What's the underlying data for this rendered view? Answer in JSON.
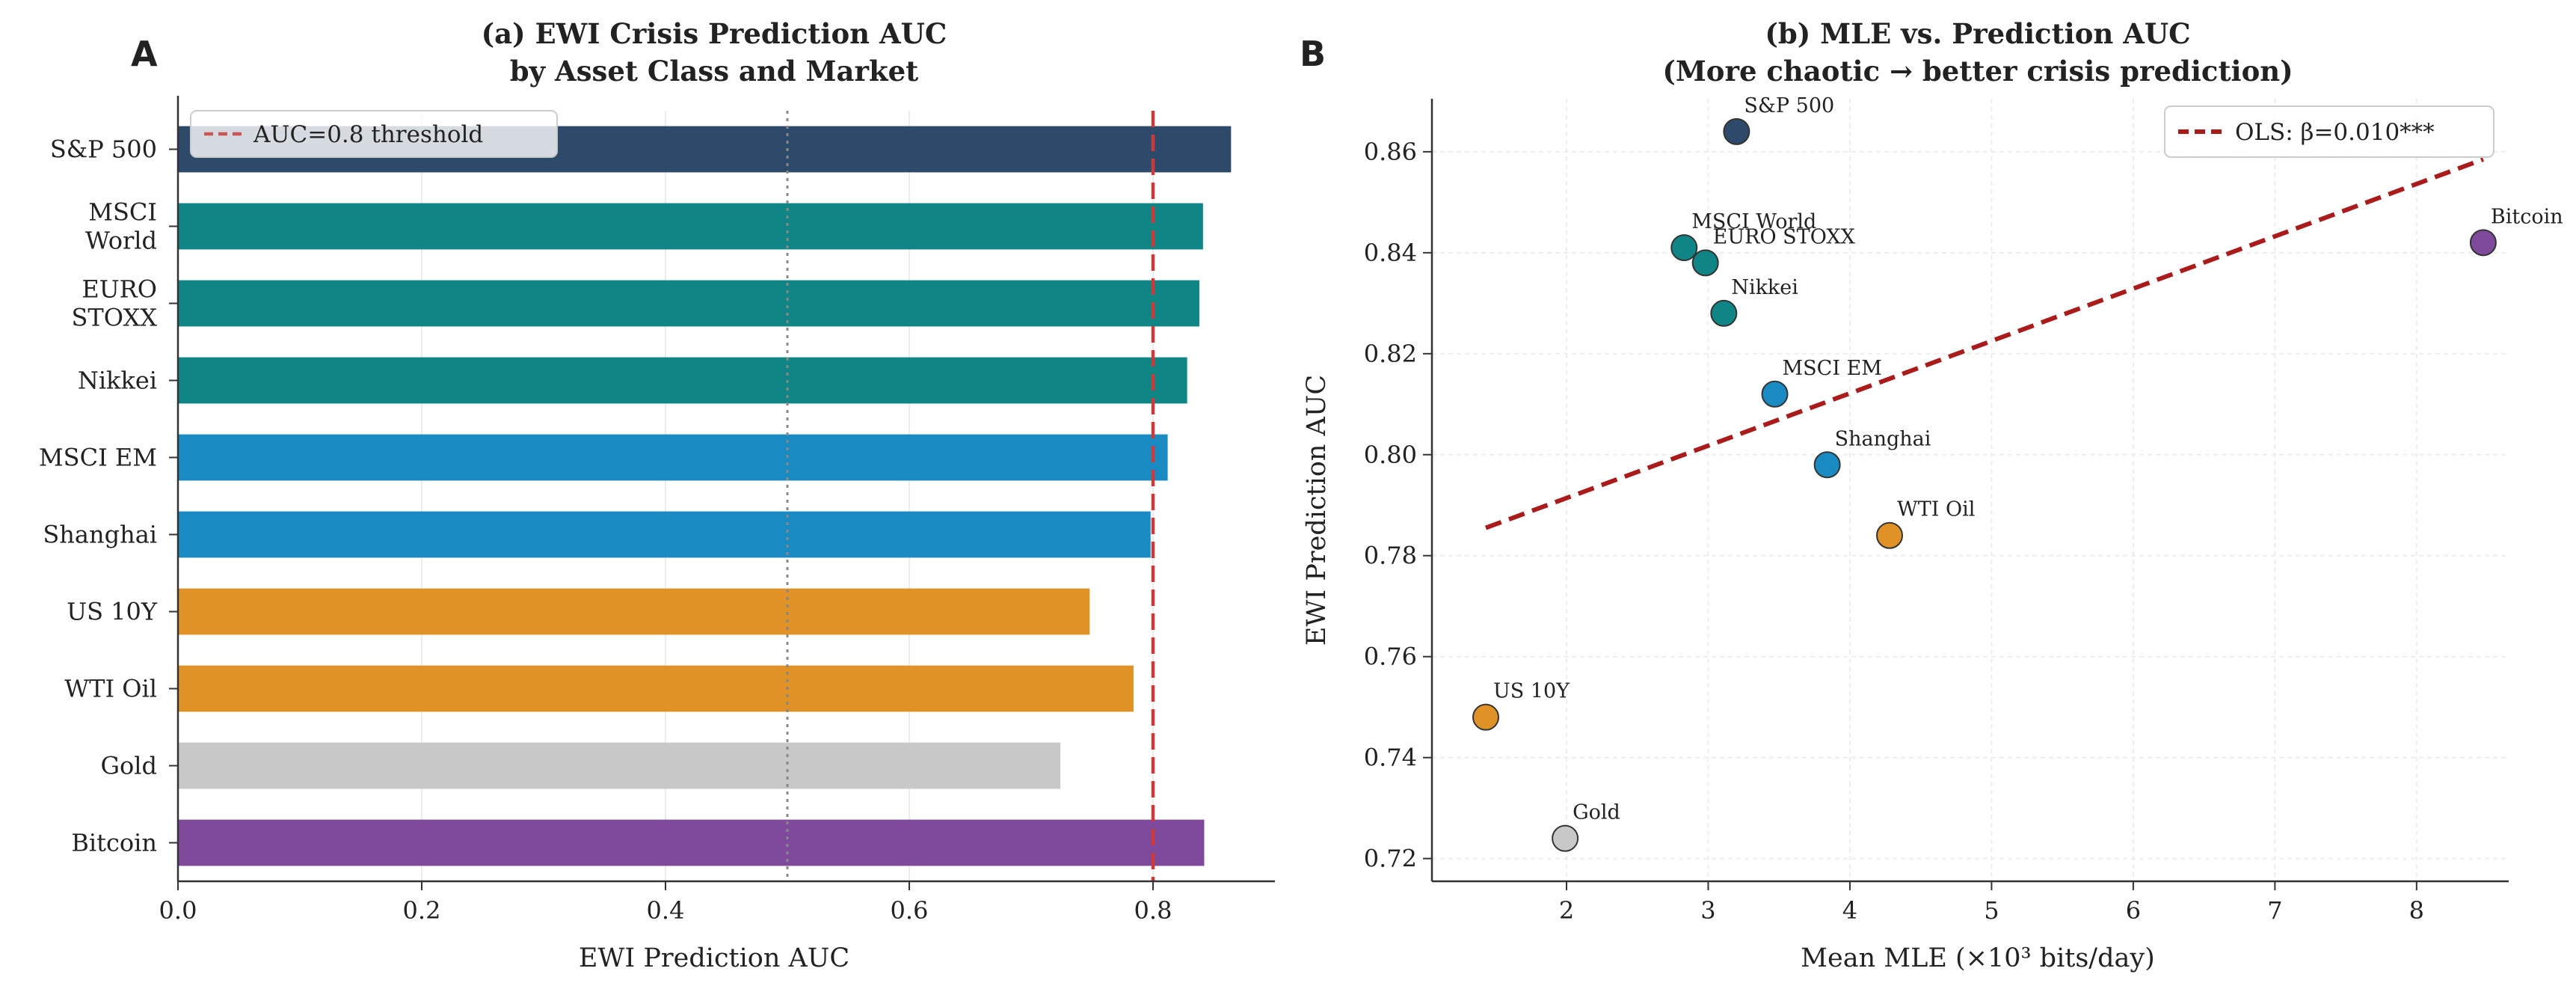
{
  "chart_data": [
    {
      "panel_letter": "A",
      "type": "bar",
      "orientation": "horizontal",
      "title_line1": "(a) EWI Crisis Prediction AUC",
      "title_line2": "by Asset Class and Market",
      "xlabel": "EWI Prediction AUC",
      "xlim": [
        0,
        0.9
      ],
      "xticks": [
        0.0,
        0.2,
        0.4,
        0.6,
        0.8
      ],
      "xtick_labels": [
        "0.0",
        "0.2",
        "0.4",
        "0.6",
        "0.8"
      ],
      "categories": [
        {
          "label": [
            "S&P 500"
          ],
          "value": 0.864,
          "color": "#2e4a6b"
        },
        {
          "label": [
            "MSCI",
            "World"
          ],
          "value": 0.841,
          "color": "#0f8585"
        },
        {
          "label": [
            "EURO",
            "STOXX"
          ],
          "value": 0.838,
          "color": "#0f8585"
        },
        {
          "label": [
            "Nikkei"
          ],
          "value": 0.828,
          "color": "#0f8585"
        },
        {
          "label": [
            "MSCI EM"
          ],
          "value": 0.812,
          "color": "#1a8ac2"
        },
        {
          "label": [
            "Shanghai"
          ],
          "value": 0.798,
          "color": "#1a8ac2"
        },
        {
          "label": [
            "US 10Y"
          ],
          "value": 0.748,
          "color": "#e09226"
        },
        {
          "label": [
            "WTI Oil"
          ],
          "value": 0.784,
          "color": "#e09226"
        },
        {
          "label": [
            "Gold"
          ],
          "value": 0.724,
          "color": "#c8c8c8"
        },
        {
          "label": [
            "Bitcoin"
          ],
          "value": 0.842,
          "color": "#7f4a9c"
        }
      ],
      "reference_lines": [
        {
          "value": 0.5,
          "style": "dotted",
          "color": "#888888"
        },
        {
          "value": 0.8,
          "style": "dashed",
          "color": "#cc3b3b"
        }
      ],
      "legend": {
        "label": "AUC=0.8 threshold",
        "position": "top-left",
        "color": "#cc5555"
      }
    },
    {
      "panel_letter": "B",
      "type": "scatter",
      "title_line1": "(b) MLE vs. Prediction AUC",
      "title_line2": "(More chaotic → better crisis prediction)",
      "xlabel": "Mean MLE (×10³ bits/day)",
      "ylabel": "EWI Prediction AUC",
      "xlim": [
        1.05,
        8.65
      ],
      "ylim": [
        0.7155,
        0.8705
      ],
      "xticks": [
        2,
        3,
        4,
        5,
        6,
        7,
        8
      ],
      "xtick_labels": [
        "2",
        "3",
        "4",
        "5",
        "6",
        "7",
        "8"
      ],
      "yticks": [
        0.72,
        0.74,
        0.76,
        0.78,
        0.8,
        0.82,
        0.84,
        0.86
      ],
      "ytick_labels": [
        "0.72",
        "0.74",
        "0.76",
        "0.78",
        "0.80",
        "0.82",
        "0.84",
        "0.86"
      ],
      "points": [
        {
          "label": "S&P 500",
          "x": 3.2,
          "y": 0.864,
          "color": "#2e4a6b"
        },
        {
          "label": "MSCI World",
          "x": 2.83,
          "y": 0.841,
          "color": "#0f8585"
        },
        {
          "label": "EURO STOXX",
          "x": 2.98,
          "y": 0.838,
          "color": "#0f8585"
        },
        {
          "label": "Nikkei",
          "x": 3.11,
          "y": 0.828,
          "color": "#0f8585"
        },
        {
          "label": "MSCI EM",
          "x": 3.47,
          "y": 0.812,
          "color": "#1a8ac2"
        },
        {
          "label": "Shanghai",
          "x": 3.84,
          "y": 0.798,
          "color": "#1a8ac2"
        },
        {
          "label": "WTI Oil",
          "x": 4.28,
          "y": 0.784,
          "color": "#e09226"
        },
        {
          "label": "US 10Y",
          "x": 1.43,
          "y": 0.748,
          "color": "#e09226"
        },
        {
          "label": "Gold",
          "x": 1.99,
          "y": 0.724,
          "color": "#c8c8c8"
        },
        {
          "label": "Bitcoin",
          "x": 8.47,
          "y": 0.842,
          "color": "#7f4a9c"
        }
      ],
      "fit_line": {
        "x": [
          1.43,
          8.47
        ],
        "y": [
          0.7855,
          0.8585
        ],
        "color": "#aa1c1c",
        "style": "dashed"
      },
      "legend": {
        "label": "OLS: β=0.010***",
        "position": "top-right"
      }
    }
  ]
}
